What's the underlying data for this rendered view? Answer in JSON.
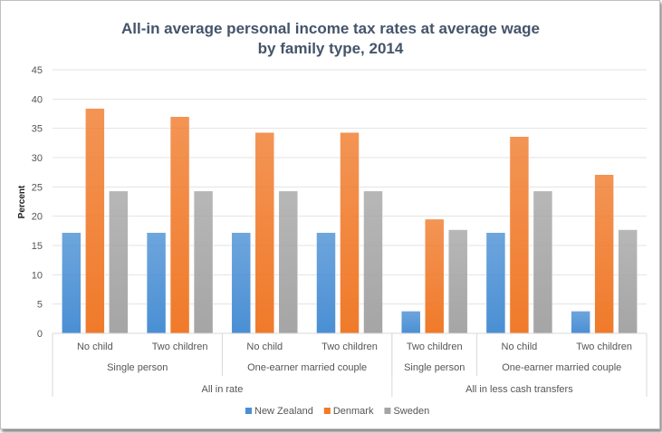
{
  "chart_data": {
    "type": "bar",
    "title": "All-in average personal income tax rates at average wage",
    "subtitle": "by family type, 2014",
    "ylabel": "Percent",
    "xlabel": "",
    "ylim": [
      0,
      45
    ],
    "yticks": [
      0,
      5,
      10,
      15,
      20,
      25,
      30,
      35,
      40,
      45
    ],
    "grid": true,
    "legend_position": "bottom",
    "categories": [
      "No child",
      "Two children",
      "No child",
      "Two children",
      "Two children",
      "No child",
      "Two children"
    ],
    "category_groups_level2": [
      {
        "label": "Single person",
        "span": 2
      },
      {
        "label": "One-earner married couple",
        "span": 2
      },
      {
        "label": "Single person",
        "span": 1
      },
      {
        "label": "One-earner married couple",
        "span": 2
      }
    ],
    "category_groups_level3": [
      {
        "label": "All in rate",
        "span": 4
      },
      {
        "label": "All in less cash transfers",
        "span": 3
      }
    ],
    "series": [
      {
        "name": "New Zealand",
        "color": "#4a8fd4",
        "values": [
          17.2,
          17.2,
          17.2,
          17.2,
          3.8,
          17.2,
          3.8
        ]
      },
      {
        "name": "Denmark",
        "color": "#f07a2a",
        "values": [
          38.4,
          37.0,
          34.3,
          34.3,
          19.5,
          33.6,
          27.1
        ]
      },
      {
        "name": "Sweden",
        "color": "#a5a5a5",
        "values": [
          24.3,
          24.3,
          24.3,
          24.3,
          17.7,
          24.3,
          17.7
        ]
      }
    ]
  }
}
